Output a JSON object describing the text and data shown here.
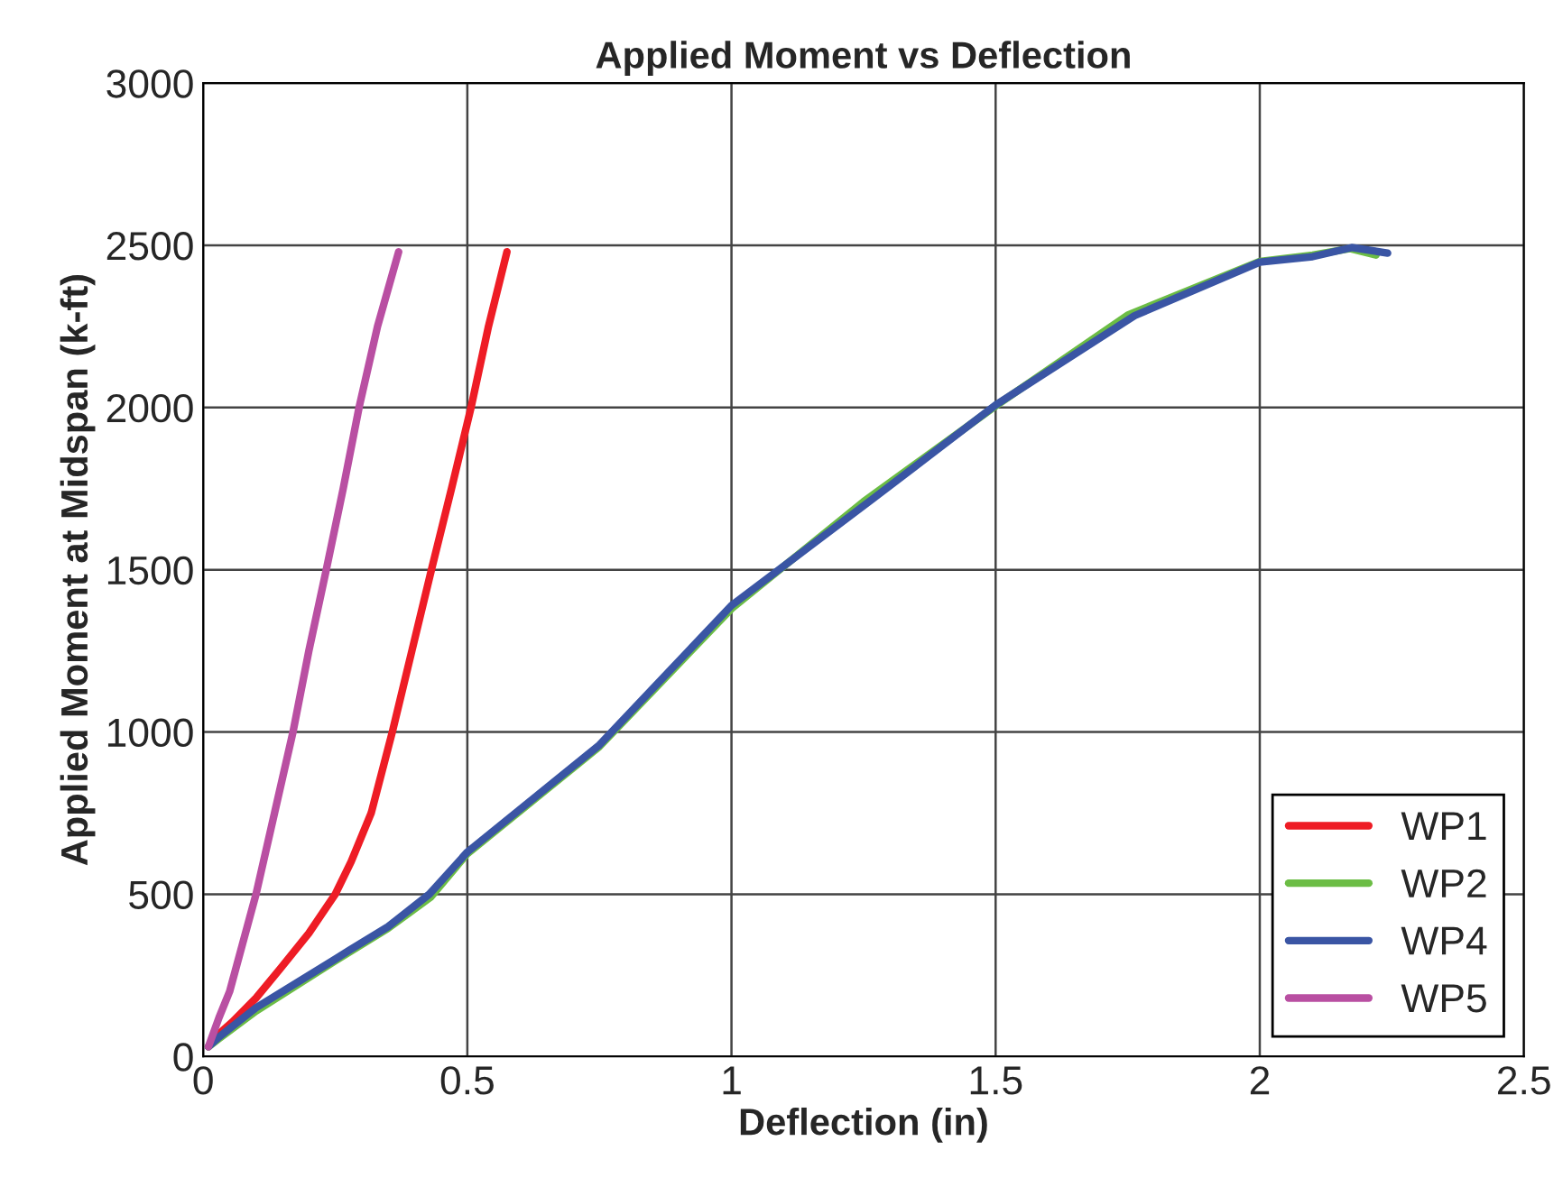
{
  "chart_data": {
    "type": "line",
    "title": "Applied Moment vs Deflection",
    "xlabel": "Deflection (in)",
    "ylabel": "Applied Moment at Midspan (k-ft)",
    "xlim": [
      0,
      2.5
    ],
    "ylim": [
      0,
      3000
    ],
    "xticks": [
      0,
      0.5,
      1,
      1.5,
      2,
      2.5
    ],
    "yticks": [
      0,
      500,
      1000,
      1500,
      2000,
      2500,
      3000
    ],
    "grid": true,
    "legend": "bottom right",
    "line_style": "solid",
    "series": [
      {
        "name": "WP1",
        "color": "#ee1c25",
        "x": [
          0.01,
          0.03,
          0.055,
          0.1,
          0.147,
          0.2,
          0.25,
          0.28,
          0.318,
          0.358,
          0.395,
          0.432,
          0.47,
          0.507,
          0.54,
          0.575
        ],
        "values": [
          30,
          70,
          106,
          180,
          273,
          380,
          500,
          600,
          750,
          1000,
          1250,
          1500,
          1750,
          2000,
          2250,
          2480
        ]
      },
      {
        "name": "WP2",
        "color": "#6cbd45",
        "x": [
          0.01,
          0.03,
          0.1,
          0.25,
          0.35,
          0.43,
          0.5,
          0.75,
          1,
          1.25,
          1.5,
          1.75,
          2,
          2.1,
          2.17,
          2.22
        ],
        "values": [
          30,
          55,
          140,
          295,
          395,
          490,
          625,
          955,
          1380,
          1710,
          2005,
          2285,
          2450,
          2470,
          2490,
          2470
        ]
      },
      {
        "name": "WP4",
        "color": "#3a55a4",
        "x": [
          0.01,
          0.03,
          0.1,
          0.25,
          0.278,
          0.35,
          0.428,
          0.5,
          0.75,
          1,
          1.267,
          1.5,
          1.763,
          2,
          2.1,
          2.174,
          2.242
        ],
        "values": [
          30,
          60,
          150,
          300,
          329,
          400,
          500,
          630,
          960,
          1390,
          1718,
          2008,
          2283,
          2448,
          2465,
          2493,
          2476
        ]
      },
      {
        "name": "WP5",
        "color": "#b94fa2",
        "x": [
          0.01,
          0.03,
          0.05,
          0.1,
          0.135,
          0.17,
          0.2,
          0.233,
          0.265,
          0.295,
          0.33,
          0.37
        ],
        "values": [
          30,
          120,
          200,
          500,
          750,
          1000,
          1250,
          1500,
          1750,
          2000,
          2250,
          2480
        ]
      }
    ]
  }
}
